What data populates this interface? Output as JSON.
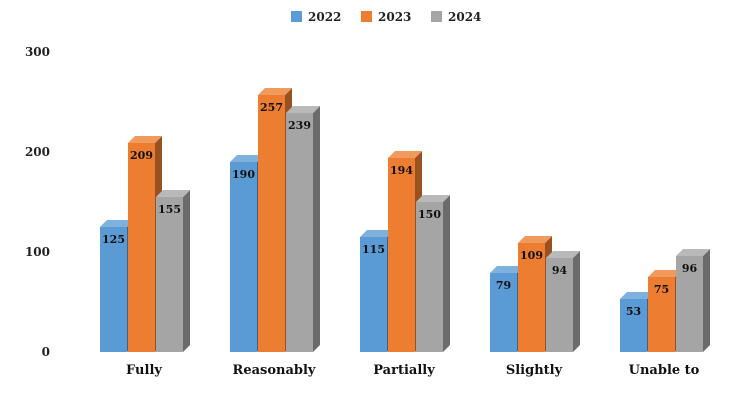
{
  "chart_data": {
    "type": "bar",
    "title": "",
    "xlabel": "",
    "ylabel": "",
    "ylim": [
      0,
      300
    ],
    "yticks": [
      0,
      100,
      200,
      300
    ],
    "grid": false,
    "legend_position": "top-center",
    "categories": [
      "Fully",
      "Reasonably",
      "Partially",
      "Slightly",
      "Unable to"
    ],
    "series": [
      {
        "name": "2022",
        "color": "#5B9BD5",
        "values": [
          125,
          190,
          115,
          79,
          53
        ]
      },
      {
        "name": "2023",
        "color": "#ED7D31",
        "values": [
          209,
          257,
          194,
          109,
          75
        ]
      },
      {
        "name": "2024",
        "color": "#A5A5A5",
        "values": [
          155,
          239,
          150,
          94,
          96
        ]
      }
    ],
    "style": "3d-columns"
  }
}
